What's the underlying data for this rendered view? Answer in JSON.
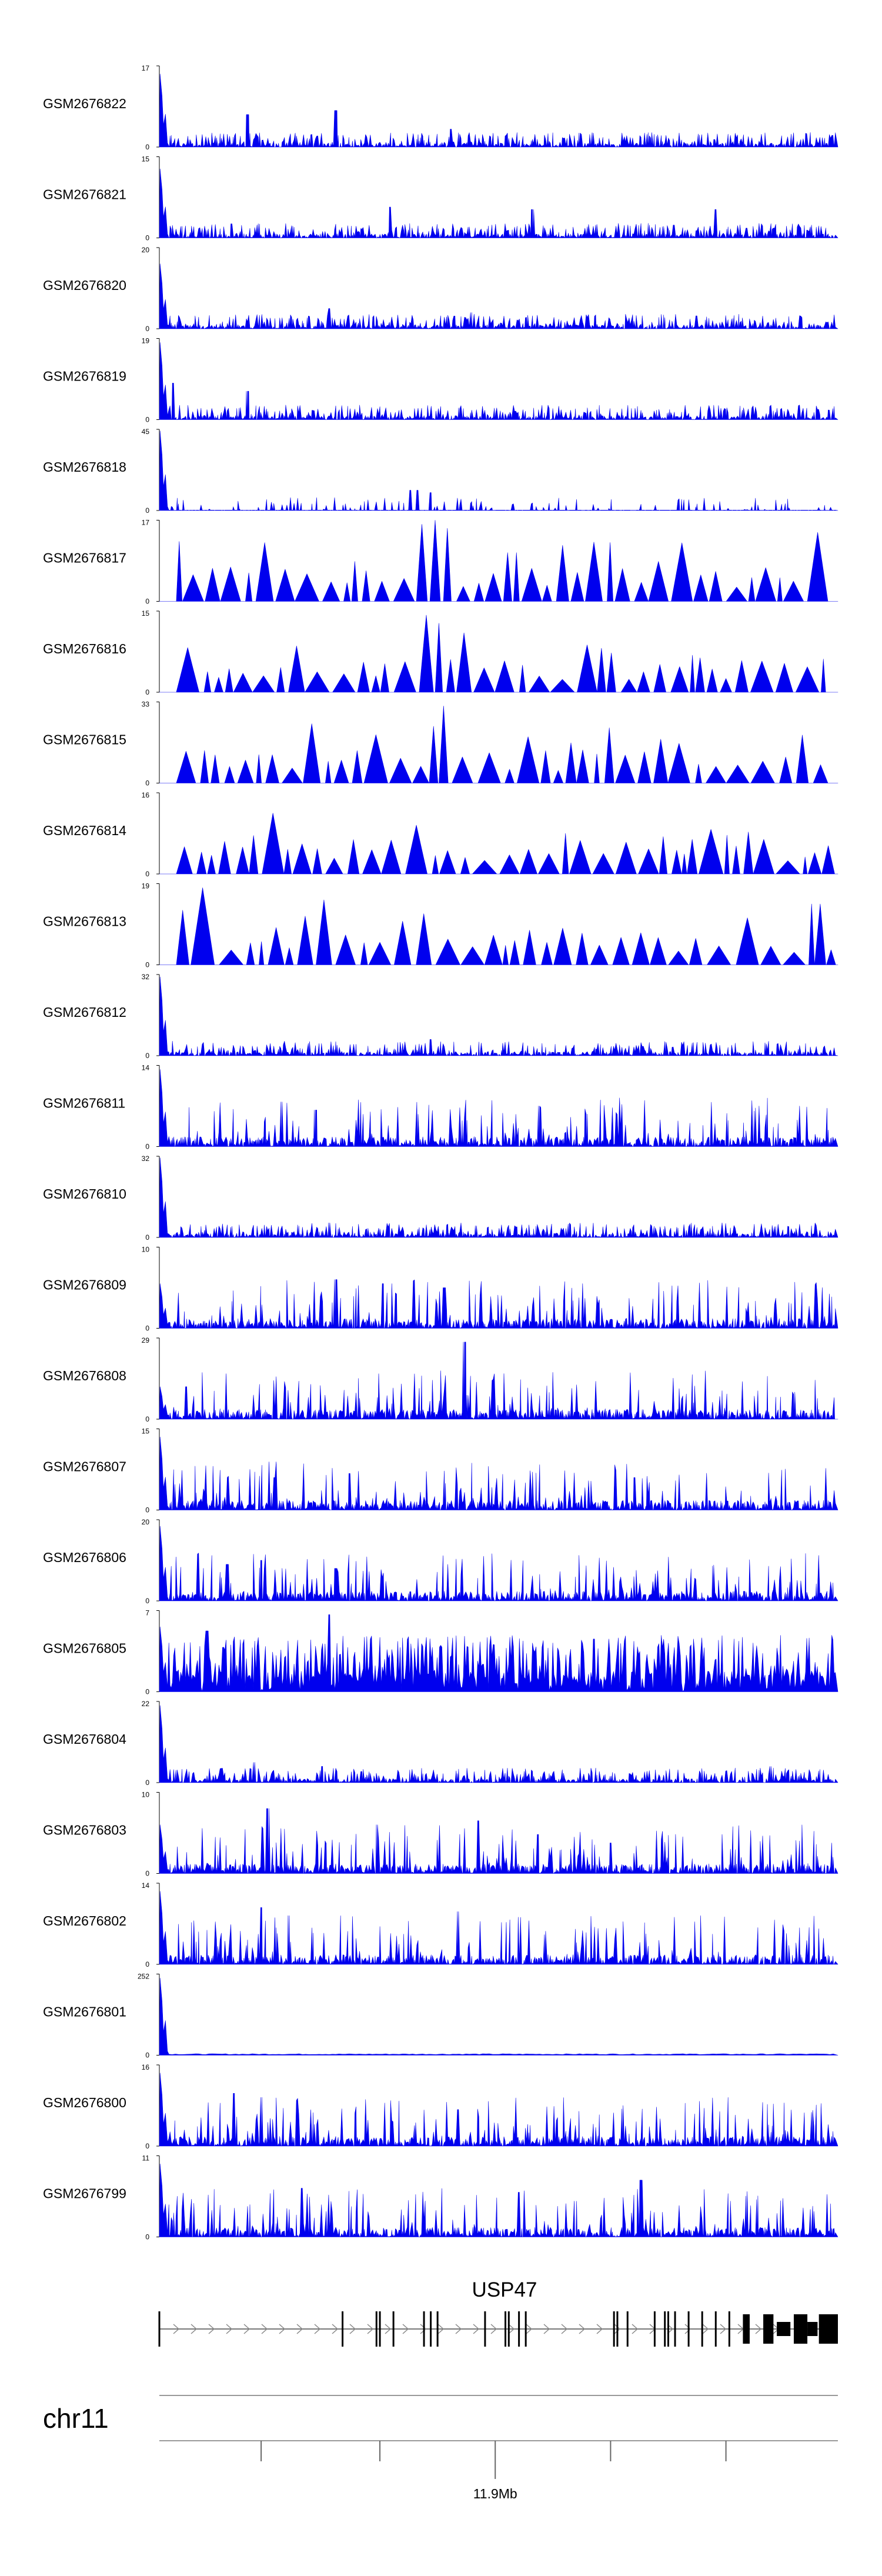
{
  "chart_data": {
    "type": "area",
    "tracks": [
      {
        "name": "GSM2676822",
        "ymax": "17",
        "ymin": "0",
        "style": "dense",
        "first": 0.9,
        "seed": 11,
        "peaks": [
          [
            0.13,
            0.4
          ],
          [
            0.26,
            0.45
          ],
          [
            0.43,
            0.22
          ]
        ]
      },
      {
        "name": "GSM2676821",
        "ymax": "15",
        "ymin": "0",
        "style": "dense",
        "first": 0.85,
        "seed": 12,
        "peaks": [
          [
            0.34,
            0.38
          ],
          [
            0.55,
            0.35
          ],
          [
            0.82,
            0.35
          ]
        ]
      },
      {
        "name": "GSM2676820",
        "ymax": "20",
        "ymin": "0",
        "style": "dense",
        "first": 0.8,
        "seed": 13,
        "peaks": [
          [
            0.25,
            0.25
          ],
          [
            0.46,
            0.2
          ]
        ]
      },
      {
        "name": "GSM2676819",
        "ymax": "19",
        "ymin": "0",
        "style": "dense",
        "first": 0.95,
        "seed": 14,
        "peaks": [
          [
            0.13,
            0.35
          ],
          [
            0.02,
            0.45
          ]
        ]
      },
      {
        "name": "GSM2676818",
        "ymax": "45",
        "ymin": "0",
        "style": "sparse",
        "first": 0.98,
        "seed": 15,
        "peaks": [
          [
            0.37,
            0.25
          ],
          [
            0.38,
            0.25
          ],
          [
            0.4,
            0.22
          ]
        ]
      },
      {
        "name": "GSM2676817",
        "ymax": "17",
        "ymin": "0",
        "style": "tri",
        "first": 0.0,
        "seed": 16,
        "peaks": [
          [
            0.39,
            0.95
          ],
          [
            0.4,
            1.0
          ],
          [
            0.41,
            0.9
          ],
          [
            0.38,
            0.7
          ],
          [
            0.51,
            0.6
          ],
          [
            0.96,
            0.85
          ]
        ]
      },
      {
        "name": "GSM2676816",
        "ymax": "15",
        "ymin": "0",
        "style": "tri",
        "first": 0.0,
        "seed": 17,
        "peaks": [
          [
            0.38,
            0.95
          ],
          [
            0.4,
            0.85
          ],
          [
            0.41,
            0.75
          ],
          [
            0.89,
            0.92
          ],
          [
            0.03,
            0.55
          ]
        ]
      },
      {
        "name": "GSM2676815",
        "ymax": "33",
        "ymin": "0",
        "style": "tri",
        "first": 0.0,
        "seed": 18,
        "peaks": [
          [
            0.41,
            0.95
          ],
          [
            0.4,
            0.7
          ],
          [
            0.39,
            0.6
          ],
          [
            0.28,
            0.4
          ],
          [
            0.56,
            0.4
          ]
        ]
      },
      {
        "name": "GSM2676814",
        "ymax": "16",
        "ymin": "0",
        "style": "tri",
        "first": 0.0,
        "seed": 19,
        "peaks": [
          [
            0.39,
            0.95
          ],
          [
            0.15,
            0.75
          ],
          [
            0.21,
            0.8
          ],
          [
            0.8,
            0.55
          ],
          [
            0.86,
            0.5
          ]
        ]
      },
      {
        "name": "GSM2676813",
        "ymax": "19",
        "ymin": "0",
        "style": "tri",
        "first": 0.0,
        "seed": 20,
        "peaks": [
          [
            0.05,
            0.95
          ],
          [
            0.22,
            0.8
          ],
          [
            0.36,
            0.7
          ],
          [
            0.42,
            0.65
          ],
          [
            0.96,
            0.75
          ]
        ]
      },
      {
        "name": "GSM2676812",
        "ymax": "32",
        "ymin": "0",
        "style": "dense",
        "first": 0.97,
        "seed": 21,
        "peaks": [
          [
            0.4,
            0.2
          ]
        ]
      },
      {
        "name": "GSM2676811",
        "ymax": "14",
        "ymin": "0",
        "style": "spiky",
        "first": 0.95,
        "seed": 22,
        "peaks": [
          [
            0.18,
            0.55
          ],
          [
            0.23,
            0.45
          ],
          [
            0.56,
            0.5
          ],
          [
            0.63,
            0.4
          ]
        ]
      },
      {
        "name": "GSM2676810",
        "ymax": "32",
        "ymin": "0",
        "style": "dense",
        "first": 0.98,
        "seed": 23,
        "peaks": [
          [
            0.25,
            0.18
          ]
        ]
      },
      {
        "name": "GSM2676809",
        "ymax": "10",
        "ymin": "0",
        "style": "spiky",
        "first": 0.55,
        "seed": 24,
        "peaks": [
          [
            0.26,
            0.6
          ],
          [
            0.33,
            0.55
          ],
          [
            0.42,
            0.5
          ]
        ]
      },
      {
        "name": "GSM2676808",
        "ymax": "29",
        "ymin": "0",
        "style": "spiky",
        "first": 0.4,
        "seed": 25,
        "peaks": [
          [
            0.45,
            0.95
          ],
          [
            0.04,
            0.4
          ]
        ]
      },
      {
        "name": "GSM2676807",
        "ymax": "15",
        "ymin": "0",
        "style": "spiky",
        "first": 0.9,
        "seed": 26,
        "peaks": [
          [
            0.17,
            0.4
          ],
          [
            0.28,
            0.45
          ],
          [
            0.7,
            0.4
          ]
        ]
      },
      {
        "name": "GSM2676806",
        "ymax": "20",
        "ymin": "0",
        "style": "spiky",
        "first": 0.92,
        "seed": 27,
        "peaks": [
          [
            0.1,
            0.45
          ],
          [
            0.15,
            0.5
          ],
          [
            0.26,
            0.4
          ]
        ]
      },
      {
        "name": "GSM2676805",
        "ymax": "7",
        "ymin": "0",
        "style": "dense_high",
        "first": 0.8,
        "seed": 28,
        "peaks": [
          [
            0.25,
            0.95
          ],
          [
            0.07,
            0.75
          ],
          [
            0.64,
            0.65
          ]
        ]
      },
      {
        "name": "GSM2676804",
        "ymax": "22",
        "ymin": "0",
        "style": "dense",
        "first": 0.95,
        "seed": 29,
        "peaks": [
          [
            0.14,
            0.25
          ],
          [
            0.24,
            0.2
          ],
          [
            0.9,
            0.2
          ]
        ]
      },
      {
        "name": "GSM2676803",
        "ymax": "10",
        "ymin": "0",
        "style": "spiky",
        "first": 0.6,
        "seed": 30,
        "peaks": [
          [
            0.16,
            0.8
          ],
          [
            0.32,
            0.6
          ],
          [
            0.47,
            0.65
          ]
        ]
      },
      {
        "name": "GSM2676802",
        "ymax": "14",
        "ymin": "0",
        "style": "spiky",
        "first": 0.9,
        "seed": 31,
        "peaks": [
          [
            0.15,
            0.7
          ],
          [
            0.19,
            0.6
          ],
          [
            0.44,
            0.65
          ]
        ]
      },
      {
        "name": "GSM2676801",
        "ymax": "252",
        "ymin": "0",
        "style": "flat",
        "first": 0.95,
        "seed": 32,
        "peaks": []
      },
      {
        "name": "GSM2676800",
        "ymax": "16",
        "ymin": "0",
        "style": "spiky",
        "first": 0.9,
        "seed": 33,
        "peaks": [
          [
            0.11,
            0.65
          ],
          [
            0.15,
            0.6
          ],
          [
            0.44,
            0.45
          ]
        ]
      },
      {
        "name": "GSM2676799",
        "ymax": "11",
        "ymin": "0",
        "style": "spiky",
        "first": 0.9,
        "seed": 34,
        "peaks": [
          [
            0.71,
            0.7
          ],
          [
            0.21,
            0.6
          ],
          [
            0.53,
            0.55
          ]
        ]
      }
    ],
    "gene": {
      "name": "USP47",
      "exons": [
        0.0,
        0.27,
        0.32,
        0.325,
        0.345,
        0.39,
        0.4,
        0.41,
        0.48,
        0.51,
        0.515,
        0.53,
        0.54,
        0.67,
        0.675,
        0.69,
        0.73,
        0.745,
        0.75,
        0.76,
        0.78,
        0.8,
        0.82,
        0.84
      ],
      "exon_blocks": [
        [
          0.86,
          0.87
        ],
        [
          0.89,
          0.905
        ],
        [
          0.935,
          0.955
        ],
        [
          0.972,
          1.0
        ]
      ],
      "exon_mid": [
        [
          0.91,
          0.93
        ],
        [
          0.955,
          0.97
        ]
      ]
    },
    "axis": {
      "chrom": "chr11",
      "tick_label": "11.9Mb",
      "tick_label_position": 0.495,
      "ticks": [
        0.15,
        0.325,
        0.495,
        0.665,
        0.835
      ]
    }
  }
}
